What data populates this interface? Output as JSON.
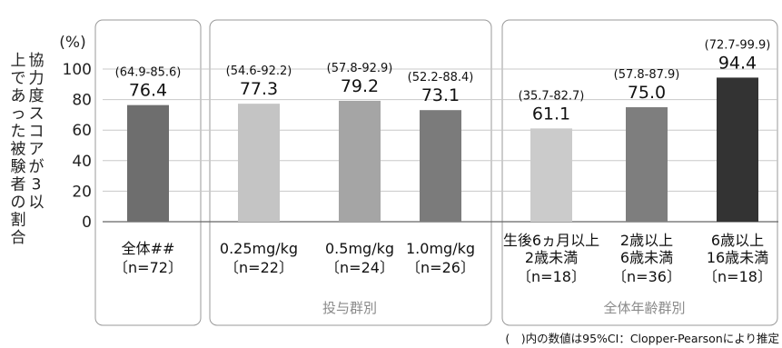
{
  "chart_data": {
    "type": "bar",
    "ylabel": "協力度スコアが3以上であった被験者の割合",
    "yunit": "(%)",
    "ylim": [
      0,
      100
    ],
    "yticks": [
      0,
      20,
      40,
      60,
      80,
      100
    ],
    "grid": true,
    "categories": [
      {
        "lines": [
          "全体##"
        ],
        "n": "〔n=72〕"
      },
      {
        "lines": [
          "0.25mg/kg"
        ],
        "n": "〔n=22〕"
      },
      {
        "lines": [
          "0.5mg/kg"
        ],
        "n": "〔n=24〕"
      },
      {
        "lines": [
          "1.0mg/kg"
        ],
        "n": "〔n=26〕"
      },
      {
        "lines": [
          "生後6ヵ月以上",
          "2歳未満"
        ],
        "n": "〔n=18〕"
      },
      {
        "lines": [
          "2歳以上",
          "6歳未満"
        ],
        "n": "〔n=36〕"
      },
      {
        "lines": [
          "6歳以上",
          "16歳未満"
        ],
        "n": "〔n=18〕"
      }
    ],
    "values": [
      76.4,
      77.3,
      79.2,
      73.1,
      61.1,
      75.0,
      94.4
    ],
    "value_labels": [
      "76.4",
      "77.3",
      "79.2",
      "73.1",
      "61.1",
      "75.0",
      "94.4"
    ],
    "ci_labels": [
      "(64.9-85.6)",
      "(54.6-92.2)",
      "(57.8-92.9)",
      "(52.2-88.4)",
      "(35.7-82.7)",
      "(57.8-87.9)",
      "(72.7-99.9)"
    ],
    "colors": [
      "#6e6e6e",
      "#c4c4c4",
      "#a5a5a5",
      "#7b7b7b",
      "#cbcbcb",
      "#7e7e7e",
      "#333333"
    ],
    "groups": [
      {
        "label": "",
        "members": [
          0
        ]
      },
      {
        "label": "投与群別",
        "members": [
          1,
          2,
          3
        ]
      },
      {
        "label": "全体年齢群別",
        "members": [
          4,
          5,
          6
        ]
      }
    ],
    "footnote": "(　)内の数値は95%CI：Clopper-Pearsonにより推定"
  }
}
